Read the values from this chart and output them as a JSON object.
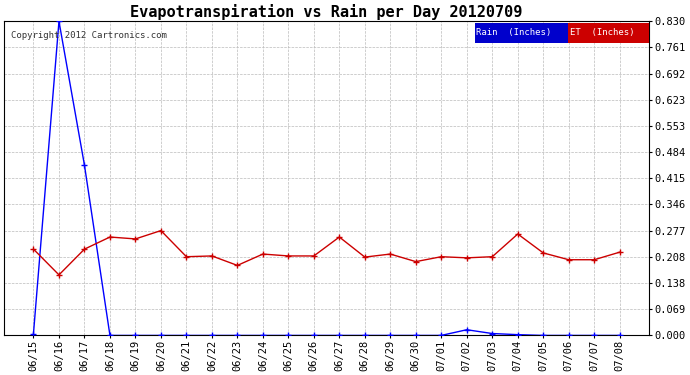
{
  "title": "Evapotranspiration vs Rain per Day 20120709",
  "copyright": "Copyright 2012 Cartronics.com",
  "background_color": "#ffffff",
  "plot_bg_color": "#ffffff",
  "grid_color": "#bbbbbb",
  "x_labels": [
    "06/15",
    "06/16",
    "06/17",
    "06/18",
    "06/19",
    "06/20",
    "06/21",
    "06/22",
    "06/23",
    "06/24",
    "06/25",
    "06/26",
    "06/27",
    "06/28",
    "06/29",
    "06/30",
    "07/01",
    "07/02",
    "07/03",
    "07/04",
    "07/05",
    "07/06",
    "07/07",
    "07/08"
  ],
  "rain_values": [
    0.005,
    0.83,
    0.45,
    0.0,
    0.0,
    0.0,
    0.0,
    0.0,
    0.0,
    0.0,
    0.0,
    0.0,
    0.0,
    0.0,
    0.0,
    0.0,
    0.0,
    0.015,
    0.005,
    0.002,
    0.0,
    0.0,
    0.0,
    0.0
  ],
  "et_values": [
    0.228,
    0.16,
    0.228,
    0.26,
    0.255,
    0.277,
    0.208,
    0.21,
    0.185,
    0.215,
    0.21,
    0.21,
    0.26,
    0.207,
    0.215,
    0.195,
    0.208,
    0.205,
    0.208,
    0.268,
    0.218,
    0.2,
    0.2,
    0.22
  ],
  "rain_color": "#0000ff",
  "et_color": "#cc0000",
  "ylim_min": 0.0,
  "ylim_max": 0.83,
  "ytick_vals": [
    0.0,
    0.069,
    0.138,
    0.208,
    0.277,
    0.346,
    0.415,
    0.484,
    0.553,
    0.623,
    0.692,
    0.761,
    0.83
  ],
  "ytick_labels": [
    "0.000",
    "0.069",
    "0.138",
    "0.208",
    "0.277",
    "0.346",
    "0.415",
    "0.484",
    "0.553",
    "0.623",
    "0.692",
    "0.761",
    "0.830"
  ],
  "title_fontsize": 11,
  "tick_fontsize": 7.5,
  "legend_rain_label": "Rain  (Inches)",
  "legend_et_label": "ET  (Inches)",
  "legend_rain_bg": "#0000cc",
  "legend_et_bg": "#cc0000"
}
